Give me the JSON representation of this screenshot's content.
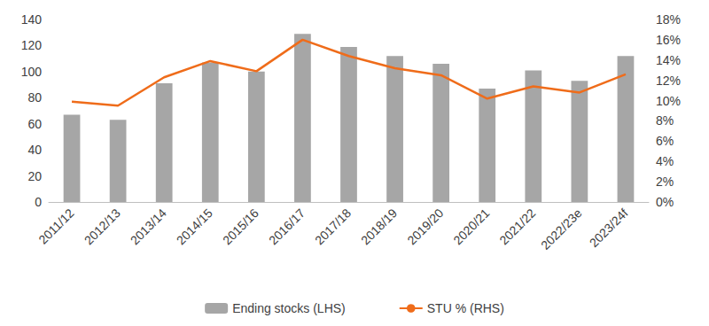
{
  "chart_data": {
    "type": "bar",
    "categories": [
      "2011/12",
      "2012/13",
      "2013/14",
      "2014/15",
      "2015/16",
      "2016/17",
      "2017/18",
      "2018/19",
      "2019/20",
      "2020/21",
      "2021/22",
      "2022/23e",
      "2023/24f"
    ],
    "series": [
      {
        "name": "Ending stocks (LHS)",
        "type": "bar",
        "color": "#a6a6a6",
        "values": [
          67,
          63,
          91,
          107,
          100,
          129,
          119,
          112,
          106,
          87,
          101,
          93,
          112
        ]
      },
      {
        "name": "STU % (RHS)",
        "type": "line",
        "axis": "y2",
        "color": "#ef6c1a",
        "marker": "none",
        "values": [
          9.9,
          9.5,
          12.3,
          13.9,
          12.9,
          16.0,
          14.4,
          13.2,
          12.5,
          10.2,
          11.4,
          10.8,
          12.6
        ]
      }
    ],
    "ylim": [
      0,
      140
    ],
    "yticks": [
      0,
      20,
      40,
      60,
      80,
      100,
      120,
      140
    ],
    "y2lim": [
      0,
      18
    ],
    "y2ticks": [
      {
        "value": 0,
        "label": "0%"
      },
      {
        "value": 2,
        "label": "2%"
      },
      {
        "value": 4,
        "label": "4%"
      },
      {
        "value": 6,
        "label": "6%"
      },
      {
        "value": 8,
        "label": "8%"
      },
      {
        "value": 10,
        "label": "10%"
      },
      {
        "value": 12,
        "label": "12%"
      },
      {
        "value": 14,
        "label": "14%"
      },
      {
        "value": 16,
        "label": "16%"
      },
      {
        "value": 18,
        "label": "18%"
      }
    ],
    "grid": false,
    "legend": "bottom"
  }
}
